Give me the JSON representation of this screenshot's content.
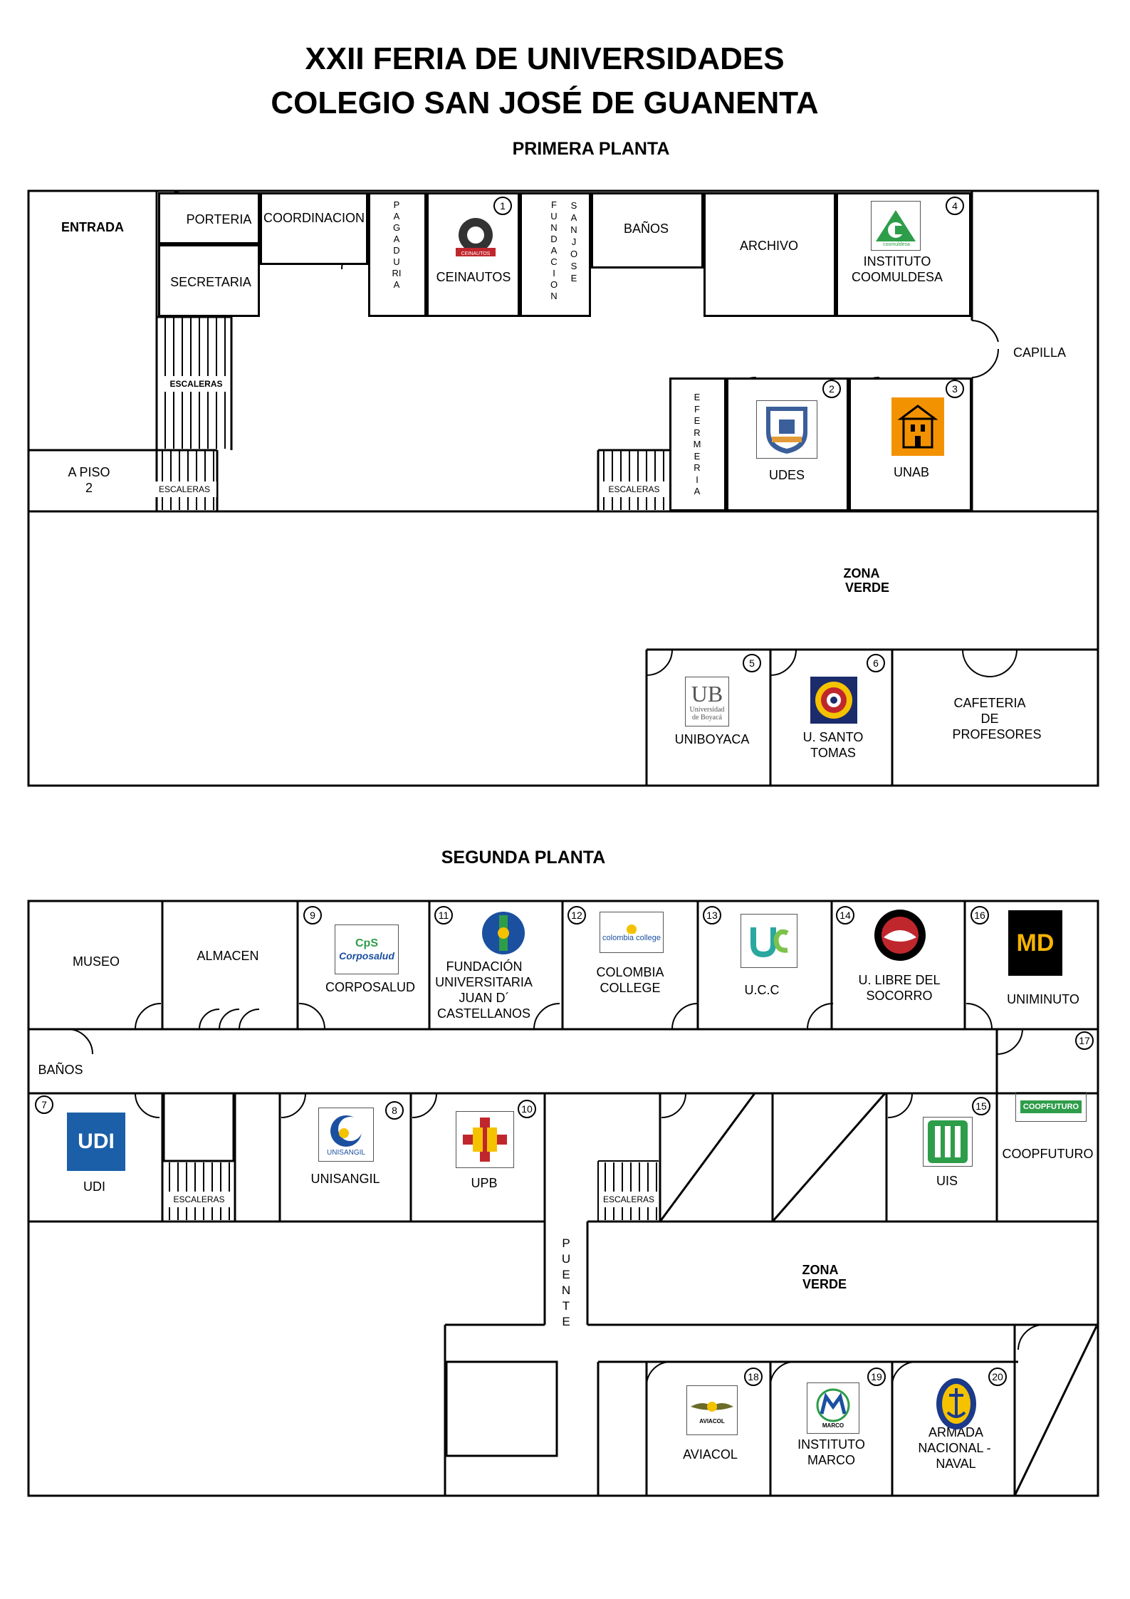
{
  "header": {
    "title_line1": "XXII FERIA DE UNIVERSIDADES",
    "title_line2": "COLEGIO SAN JOSÉ DE GUANENTA",
    "floor1": "PRIMERA PLANTA",
    "floor2": "SEGUNDA PLANTA"
  },
  "floor1": {
    "entrada": "ENTRADA",
    "porteria": "PORTERIA",
    "coordinacion": "COORDINACION",
    "secretaria": "SECRETARIA",
    "pagaduria": "PAGADURIA",
    "ceinautos": "CEINAUTOS",
    "fundacion_vertical": "FUNDACION",
    "sanjose_vertical": "SAN JOSE",
    "banos": "BAÑOS",
    "archivo": "ARCHIVO",
    "instituto_l1": "INSTITUTO",
    "instituto_l2": "COOMULDESA",
    "capilla": "CAPILLA",
    "escaleras": "ESCALERAS",
    "a_piso_l1": "A PISO",
    "a_piso_l2": "2",
    "enfermeria": "EFERMERIA",
    "udes": "UDES",
    "unab": "UNAB",
    "zona_l1": "ZONA",
    "zona_l2": "VERDE",
    "uniboyaca": "UNIBOYACA",
    "usanto_l1": "U. SANTO",
    "usanto_l2": "TOMAS",
    "cafe_l1": "CAFETERIA",
    "cafe_l2": "DE",
    "cafe_l3": "PROFESORES",
    "logo_ceinautos": "CEINAUTOS",
    "logo_coomuldesa": "coomuldesa",
    "logo_uniboyaca_l1": "Universidad",
    "logo_uniboyaca_l2": "de Boyacá"
  },
  "floor2": {
    "museo": "MUSEO",
    "almacen": "ALMACEN",
    "corposalud": "CORPOSALUD",
    "fund_l1": "FUNDACIÓN",
    "fund_l2": "UNIVERSITARIA",
    "fund_l3": "JUAN D´",
    "fund_l4": "CASTELLANOS",
    "colombia_l1": "COLOMBIA",
    "colombia_l2": "COLLEGE",
    "ucc": "U.C.C",
    "ulibre_l1": "U. LIBRE DEL",
    "ulibre_l2": "SOCORRO",
    "uniminuto": "UNIMINUTO",
    "banos": "BAÑOS",
    "udi": "UDI",
    "unisangil": "UNISANGIL",
    "upb": "UPB",
    "escaleras": "ESCALERAS",
    "uis": "UIS",
    "coopfuturo": "COOPFUTURO",
    "puente": "PUENTE",
    "zona_l1": "ZONA",
    "zona_l2": "VERDE",
    "aviacol": "AVIACOL",
    "marco_l1": "INSTITUTO",
    "marco_l2": "MARCO",
    "armada_l1": "ARMADA",
    "armada_l2": "NACIONAL -",
    "armada_l3": "NAVAL",
    "logo_corposalud": "Corposalud",
    "logo_colombia": "colombia college",
    "logo_udi": "UDI",
    "logo_unisangil": "UNISANGIL",
    "logo_coopfuturo": "COOPFUTURO",
    "logo_uis": "UIS",
    "logo_md": "MD",
    "logo_aviacol": "AVIACOL",
    "logo_marco": "MARCO"
  },
  "stand_numbers": [
    "1",
    "2",
    "3",
    "4",
    "5",
    "6",
    "7",
    "8",
    "9",
    "10",
    "11",
    "12",
    "13",
    "14",
    "15",
    "16",
    "17",
    "18",
    "19",
    "20"
  ]
}
